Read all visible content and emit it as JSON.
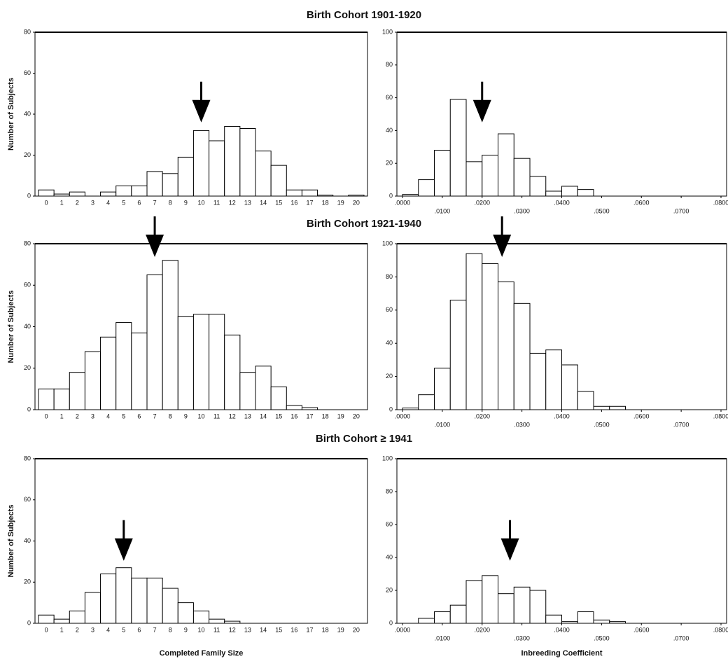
{
  "chart_data": [
    {
      "type": "bar",
      "title": "Birth Cohort 1901-1920",
      "y_label": "Number of Subjects",
      "categories": [
        "0",
        "1",
        "2",
        "3",
        "4",
        "5",
        "6",
        "7",
        "8",
        "9",
        "10",
        "11",
        "12",
        "13",
        "14",
        "15",
        "16",
        "17",
        "18",
        "19",
        "20"
      ],
      "values": [
        3,
        1,
        2,
        0,
        2,
        5,
        5,
        12,
        11,
        19,
        32,
        27,
        34,
        33,
        22,
        15,
        3,
        3,
        0.5,
        0,
        0.5
      ],
      "ylim": [
        0,
        80
      ],
      "yticks": [
        0,
        20,
        40,
        60,
        80
      ],
      "arrow": 10,
      "color": "#ffffff"
    },
    {
      "type": "histogram",
      "bins": [
        0,
        0.004,
        0.008,
        0.012,
        0.016,
        0.02,
        0.024,
        0.028,
        0.032,
        0.036,
        0.04,
        0.044,
        0.048
      ],
      "values": [
        1,
        10,
        28,
        59,
        21,
        25,
        38,
        23,
        12,
        3,
        6,
        4
      ],
      "xlim": [
        0,
        0.08
      ],
      "xticks": [
        {
          "value": 0,
          "label": ".0000"
        },
        {
          "value": 0.01,
          "label": ".0100"
        },
        {
          "value": 0.02,
          "label": ".0200"
        },
        {
          "value": 0.03,
          "label": ".0300"
        },
        {
          "value": 0.04,
          "label": ".0400"
        },
        {
          "value": 0.05,
          "label": ".0500"
        },
        {
          "value": 0.06,
          "label": ".0600"
        },
        {
          "value": 0.07,
          "label": ".0700"
        },
        {
          "value": 0.08,
          "label": ".0800"
        }
      ],
      "ylim": [
        0,
        100
      ],
      "yticks": [
        0,
        20,
        40,
        60,
        80,
        100
      ],
      "arrow": 0.02,
      "color": "#ffffff"
    },
    {
      "type": "bar",
      "title": "Birth Cohort 1921-1940",
      "y_label": "Number of Subjects",
      "categories": [
        "0",
        "1",
        "2",
        "3",
        "4",
        "5",
        "6",
        "7",
        "8",
        "9",
        "10",
        "11",
        "12",
        "13",
        "14",
        "15",
        "16",
        "17",
        "18",
        "19",
        "20"
      ],
      "values": [
        10,
        10,
        18,
        28,
        35,
        42,
        37,
        65,
        72,
        45,
        46,
        46,
        36,
        18,
        21,
        11,
        2,
        1,
        0,
        0,
        0
      ],
      "ylim": [
        0,
        80
      ],
      "yticks": [
        0,
        20,
        40,
        60,
        80
      ],
      "arrow": 7,
      "color": "#ffffff"
    },
    {
      "type": "histogram",
      "bins": [
        0,
        0.004,
        0.008,
        0.012,
        0.016,
        0.02,
        0.024,
        0.028,
        0.032,
        0.036,
        0.04,
        0.044,
        0.048,
        0.052,
        0.056
      ],
      "values": [
        1,
        9,
        25,
        66,
        94,
        88,
        77,
        64,
        34,
        36,
        27,
        11,
        2,
        2
      ],
      "xlim": [
        0,
        0.08
      ],
      "xticks": [
        {
          "value": 0,
          "label": ".0000"
        },
        {
          "value": 0.01,
          "label": ".0100"
        },
        {
          "value": 0.02,
          "label": ".0200"
        },
        {
          "value": 0.03,
          "label": ".0300"
        },
        {
          "value": 0.04,
          "label": ".0400"
        },
        {
          "value": 0.05,
          "label": ".0500"
        },
        {
          "value": 0.06,
          "label": ".0600"
        },
        {
          "value": 0.07,
          "label": ".0700"
        },
        {
          "value": 0.08,
          "label": ".0800"
        }
      ],
      "ylim": [
        0,
        100
      ],
      "yticks": [
        0,
        20,
        40,
        60,
        80,
        100
      ],
      "arrow": 0.025,
      "color": "#ffffff"
    },
    {
      "type": "bar",
      "title": "Birth Cohort ≥ 1941",
      "y_label": "Number of Subjects",
      "x_label": "Completed Family Size",
      "categories": [
        "0",
        "1",
        "2",
        "3",
        "4",
        "5",
        "6",
        "7",
        "8",
        "9",
        "10",
        "11",
        "12",
        "13",
        "14",
        "15",
        "16",
        "17",
        "18",
        "19",
        "20"
      ],
      "values": [
        4,
        2,
        6,
        15,
        24,
        27,
        22,
        22,
        17,
        10,
        6,
        2,
        1,
        0,
        0,
        0,
        0,
        0,
        0,
        0,
        0
      ],
      "ylim": [
        0,
        80
      ],
      "yticks": [
        0,
        20,
        40,
        60,
        80
      ],
      "arrow": 5,
      "color": "#ffffff"
    },
    {
      "type": "histogram",
      "x_label": "Inbreeding Coefficient",
      "bins": [
        0.004,
        0.008,
        0.012,
        0.016,
        0.02,
        0.024,
        0.028,
        0.032,
        0.036,
        0.04,
        0.044,
        0.048,
        0.052,
        0.056
      ],
      "values": [
        3,
        7,
        11,
        26,
        29,
        18,
        22,
        20,
        5,
        1,
        7,
        2,
        1
      ],
      "xlim": [
        0,
        0.08
      ],
      "xticks": [
        {
          "value": 0,
          "label": ".0000"
        },
        {
          "value": 0.01,
          "label": ".0100"
        },
        {
          "value": 0.02,
          "label": ".0200"
        },
        {
          "value": 0.03,
          "label": ".0300"
        },
        {
          "value": 0.04,
          "label": ".0400"
        },
        {
          "value": 0.05,
          "label": ".0500"
        },
        {
          "value": 0.06,
          "label": ".0600"
        },
        {
          "value": 0.07,
          "label": ".0700"
        },
        {
          "value": 0.08,
          "label": ".0800"
        }
      ],
      "ylim": [
        0,
        100
      ],
      "yticks": [
        0,
        20,
        40,
        60,
        80,
        100
      ],
      "arrow": 0.027,
      "color": "#ffffff"
    }
  ]
}
